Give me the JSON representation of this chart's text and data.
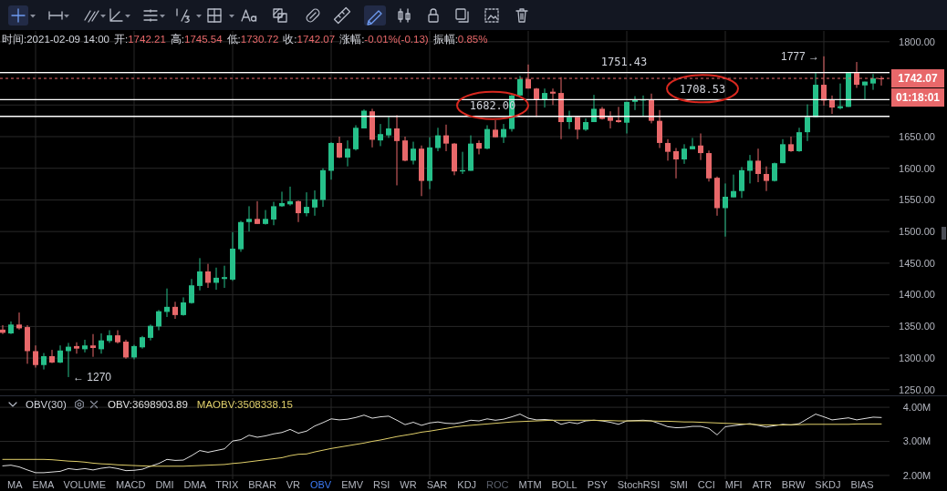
{
  "chart_data": [
    {
      "type": "candlestick",
      "categories": [
        null,
        null,
        null,
        null,
        null,
        null,
        null,
        null,
        null,
        null,
        null,
        null,
        null,
        null,
        null,
        null,
        null,
        null,
        null,
        null,
        null,
        null,
        null,
        null,
        null,
        null,
        null,
        null,
        null,
        null,
        null,
        null,
        null,
        null,
        null,
        null,
        null,
        null,
        null,
        null,
        null,
        null,
        null,
        null,
        null,
        null,
        null,
        null,
        null,
        null,
        null,
        null,
        null,
        null,
        null,
        null,
        null,
        null,
        null,
        null,
        null,
        null,
        null,
        null,
        null,
        null,
        null,
        null,
        null,
        null,
        null,
        null,
        null,
        null,
        null,
        null,
        null,
        null,
        null,
        null,
        null,
        null,
        null,
        null,
        null,
        null,
        null,
        null,
        null,
        null,
        null,
        null,
        null,
        null,
        null,
        null,
        null,
        null,
        null,
        null,
        null,
        null,
        null,
        null,
        null,
        null,
        null,
        null
      ],
      "ohlc": [
        [
          1345,
          1352,
          1338,
          1340
        ],
        [
          1339,
          1358,
          1338,
          1353
        ],
        [
          1353,
          1372,
          1345,
          1347
        ],
        [
          1349,
          1352,
          1291,
          1311
        ],
        [
          1311,
          1320,
          1285,
          1289
        ],
        [
          1289,
          1308,
          1282,
          1303
        ],
        [
          1303,
          1313,
          1292,
          1293
        ],
        [
          1293,
          1320,
          1292,
          1312
        ],
        [
          1311,
          1324,
          1270,
          1318
        ],
        [
          1319,
          1325,
          1307,
          1315
        ],
        [
          1314,
          1329,
          1309,
          1320
        ],
        [
          1320,
          1338,
          1302,
          1316
        ],
        [
          1314,
          1339,
          1307,
          1328
        ],
        [
          1327,
          1344,
          1324,
          1336
        ],
        [
          1336,
          1344,
          1323,
          1325
        ],
        [
          1326,
          1329,
          1299,
          1301
        ],
        [
          1301,
          1321,
          1298,
          1319
        ],
        [
          1317,
          1335,
          1315,
          1333
        ],
        [
          1332,
          1353,
          1328,
          1351
        ],
        [
          1350,
          1376,
          1344,
          1374
        ],
        [
          1373,
          1410,
          1365,
          1381
        ],
        [
          1381,
          1389,
          1362,
          1368
        ],
        [
          1368,
          1396,
          1367,
          1388
        ],
        [
          1387,
          1425,
          1386,
          1415
        ],
        [
          1414,
          1458,
          1407,
          1437
        ],
        [
          1437,
          1449,
          1411,
          1419
        ],
        [
          1419,
          1443,
          1408,
          1427
        ],
        [
          1425,
          1446,
          1411,
          1428
        ],
        [
          1424,
          1499,
          1422,
          1473
        ],
        [
          1472,
          1517,
          1468,
          1515
        ],
        [
          1515,
          1540,
          1500,
          1520
        ],
        [
          1520,
          1548,
          1512,
          1512
        ],
        [
          1512,
          1534,
          1511,
          1520
        ],
        [
          1519,
          1547,
          1510,
          1540
        ],
        [
          1540,
          1563,
          1539,
          1545
        ],
        [
          1543,
          1571,
          1541,
          1548
        ],
        [
          1548,
          1549,
          1515,
          1529
        ],
        [
          1529,
          1562,
          1524,
          1539
        ],
        [
          1538,
          1565,
          1525,
          1551
        ],
        [
          1550,
          1600,
          1539,
          1597
        ],
        [
          1596,
          1641,
          1582,
          1640
        ],
        [
          1640,
          1650,
          1616,
          1617
        ],
        [
          1617,
          1644,
          1603,
          1631
        ],
        [
          1630,
          1668,
          1628,
          1664
        ],
        [
          1663,
          1693,
          1663,
          1691
        ],
        [
          1690,
          1694,
          1633,
          1645
        ],
        [
          1644,
          1670,
          1635,
          1654
        ],
        [
          1652,
          1681,
          1648,
          1663
        ],
        [
          1663,
          1684,
          1573,
          1643
        ],
        [
          1644,
          1650,
          1611,
          1612
        ],
        [
          1612,
          1642,
          1606,
          1631
        ],
        [
          1631,
          1636,
          1556,
          1580
        ],
        [
          1580,
          1649,
          1567,
          1633
        ],
        [
          1632,
          1664,
          1627,
          1652
        ],
        [
          1652,
          1669,
          1627,
          1639
        ],
        [
          1639,
          1640,
          1589,
          1595
        ],
        [
          1595,
          1626,
          1591,
          1597
        ],
        [
          1596,
          1652,
          1596,
          1639
        ],
        [
          1640,
          1644,
          1622,
          1631
        ],
        [
          1631,
          1668,
          1630,
          1662
        ],
        [
          1661,
          1676,
          1649,
          1649
        ],
        [
          1649,
          1670,
          1640,
          1662
        ],
        [
          1662,
          1716,
          1658,
          1715
        ],
        [
          1715,
          1746,
          1715,
          1741
        ],
        [
          1741,
          1764,
          1726,
          1726
        ],
        [
          1726,
          1727,
          1681,
          1709
        ],
        [
          1709,
          1726,
          1696,
          1719
        ],
        [
          1721,
          1726,
          1700,
          1718
        ],
        [
          1719,
          1744,
          1646,
          1673
        ],
        [
          1673,
          1691,
          1662,
          1681
        ],
        [
          1681,
          1681,
          1646,
          1661
        ],
        [
          1661,
          1679,
          1659,
          1673
        ],
        [
          1673,
          1716,
          1673,
          1694
        ],
        [
          1694,
          1697,
          1677,
          1678
        ],
        [
          1681,
          1690,
          1663,
          1675
        ],
        [
          1676,
          1697,
          1672,
          1673
        ],
        [
          1672,
          1705,
          1655,
          1705
        ],
        [
          1705,
          1714,
          1692,
          1709
        ],
        [
          1707,
          1715,
          1682,
          1709
        ],
        [
          1708,
          1718,
          1671,
          1675
        ],
        [
          1675,
          1692,
          1632,
          1640
        ],
        [
          1640,
          1646,
          1612,
          1626
        ],
        [
          1627,
          1632,
          1584,
          1614
        ],
        [
          1614,
          1638,
          1607,
          1631
        ],
        [
          1630,
          1648,
          1630,
          1635
        ],
        [
          1636,
          1655,
          1613,
          1624
        ],
        [
          1624,
          1628,
          1579,
          1584
        ],
        [
          1585,
          1587,
          1525,
          1537
        ],
        [
          1537,
          1576,
          1492,
          1555
        ],
        [
          1554,
          1590,
          1554,
          1564
        ],
        [
          1564,
          1602,
          1553,
          1597
        ],
        [
          1596,
          1621,
          1576,
          1612
        ],
        [
          1612,
          1631,
          1578,
          1591
        ],
        [
          1591,
          1603,
          1564,
          1580
        ],
        [
          1580,
          1609,
          1579,
          1608
        ],
        [
          1608,
          1646,
          1608,
          1638
        ],
        [
          1638,
          1650,
          1626,
          1627
        ],
        [
          1627,
          1664,
          1626,
          1657
        ],
        [
          1657,
          1701,
          1643,
          1681
        ],
        [
          1681,
          1751,
          1681,
          1732
        ],
        [
          1732,
          1777,
          1699,
          1707
        ],
        [
          1708,
          1715,
          1686,
          1696
        ],
        [
          1695,
          1734,
          1693,
          1698
        ],
        [
          1697,
          1752,
          1697,
          1751
        ],
        [
          1751,
          1768,
          1727,
          1732
        ],
        [
          1731,
          1737,
          1708,
          1737
        ],
        [
          1734,
          1749,
          1724,
          1742
        ],
        [
          1742.21,
          1745.54,
          1730.72,
          1742.07
        ]
      ],
      "colors": [
        "#e8686a",
        "#26c08a",
        "#e8686a",
        "#e8686a",
        "#e8686a",
        "#26c08a",
        "#e8686a",
        "#26c08a",
        "#26c08a",
        "#e8686a",
        "#26c08a",
        "#e8686a",
        "#26c08a",
        "#26c08a",
        "#e8686a",
        "#e8686a",
        "#26c08a",
        "#26c08a",
        "#26c08a",
        "#26c08a",
        "#26c08a",
        "#e8686a",
        "#26c08a",
        "#26c08a",
        "#26c08a",
        "#e8686a",
        "#26c08a",
        "#26c08a",
        "#26c08a",
        "#26c08a",
        "#26c08a",
        "#e8686a",
        "#26c08a",
        "#26c08a",
        "#26c08a",
        "#26c08a",
        "#e8686a",
        "#26c08a",
        "#26c08a",
        "#26c08a",
        "#26c08a",
        "#e8686a",
        "#26c08a",
        "#26c08a",
        "#26c08a",
        "#e8686a",
        "#26c08a",
        "#26c08a",
        "#e8686a",
        "#e8686a",
        "#26c08a",
        "#e8686a",
        "#26c08a",
        "#26c08a",
        "#e8686a",
        "#e8686a",
        "#26c08a",
        "#26c08a",
        "#e8686a",
        "#26c08a",
        "#e8686a",
        "#26c08a",
        "#26c08a",
        "#26c08a",
        "#e8686a",
        "#e8686a",
        "#26c08a",
        "#e8686a",
        "#e8686a",
        "#26c08a",
        "#e8686a",
        "#26c08a",
        "#26c08a",
        "#e8686a",
        "#e8686a",
        "#e8686a",
        "#26c08a",
        "#26c08a",
        "#26c08a",
        "#e8686a",
        "#e8686a",
        "#e8686a",
        "#e8686a",
        "#26c08a",
        "#26c08a",
        "#e8686a",
        "#e8686a",
        "#e8686a",
        "#26c08a",
        "#26c08a",
        "#26c08a",
        "#26c08a",
        "#e8686a",
        "#e8686a",
        "#26c08a",
        "#26c08a",
        "#e8686a",
        "#26c08a",
        "#26c08a",
        "#26c08a",
        "#e8686a",
        "#e8686a",
        "#26c08a",
        "#26c08a",
        "#e8686a",
        "#26c08a",
        "#26c08a",
        "#e8686a"
      ],
      "ylim": [
        1244,
        1817
      ],
      "yticks": [
        {
          "value": 1250,
          "label": "1250.00"
        },
        {
          "value": 1300,
          "label": "1300.00"
        },
        {
          "value": 1350,
          "label": "1350.00"
        },
        {
          "value": 1400,
          "label": "1400.00"
        },
        {
          "value": 1450,
          "label": "1450.00"
        },
        {
          "value": 1500,
          "label": "1500.00"
        },
        {
          "value": 1550,
          "label": "1550.00"
        },
        {
          "value": 1600,
          "label": "1600.00"
        },
        {
          "value": 1650,
          "label": "1650.00"
        },
        {
          "value": 1700,
          "label": null
        },
        {
          "value": 1750,
          "label": null
        },
        {
          "value": 1800,
          "label": "1800.00"
        }
      ],
      "grid": true,
      "ref_lines": [
        {
          "axis": "y",
          "value": 1751.43,
          "label": "1751.43",
          "color": "#ffffff"
        },
        {
          "axis": "y",
          "value": 1708.53,
          "label": "1708.53",
          "color": "#ffffff"
        },
        {
          "axis": "y",
          "value": 1682.0,
          "label": "1682.00",
          "color": "#ffffff"
        },
        {
          "axis": "y",
          "value": 1742.07,
          "label": "1742.07",
          "color": "#e8686a",
          "line_style": "dashed"
        }
      ],
      "annotations": [
        "时间:2021-02-09 14:00",
        "开:1742.21",
        "高:1745.54",
        "低:1730.72",
        "收:1742.07",
        "涨幅:-0.01%(-0.13)",
        "振幅:0.85%",
        "01:18:01",
        "1777 →",
        "← 1270"
      ]
    },
    {
      "type": "line",
      "title": "OBV(30)",
      "categories": [
        null,
        null,
        null,
        null,
        null,
        null,
        null,
        null,
        null,
        null,
        null,
        null,
        null,
        null,
        null,
        null,
        null,
        null,
        null,
        null,
        null,
        null,
        null,
        null,
        null,
        null,
        null,
        null,
        null,
        null,
        null,
        null,
        null,
        null,
        null,
        null,
        null,
        null,
        null,
        null,
        null,
        null,
        null,
        null,
        null,
        null,
        null,
        null,
        null,
        null,
        null,
        null,
        null,
        null,
        null,
        null,
        null,
        null,
        null,
        null,
        null,
        null,
        null,
        null,
        null,
        null,
        null,
        null,
        null,
        null,
        null,
        null,
        null,
        null,
        null,
        null,
        null,
        null,
        null,
        null,
        null,
        null,
        null,
        null,
        null,
        null,
        null,
        null,
        null,
        null,
        null,
        null,
        null,
        null,
        null,
        null,
        null,
        null,
        null,
        null,
        null,
        null,
        null,
        null,
        null,
        null,
        null,
        null
      ],
      "series": [
        {
          "name": "OBV:3698903.89",
          "color": "#e0e0e0",
          "values": [
            2280000,
            2300000,
            2250000,
            2160000,
            2080000,
            2080000,
            2100000,
            2120000,
            2200000,
            2170000,
            2200000,
            2160000,
            2210000,
            2240000,
            2200000,
            2140000,
            2150000,
            2180000,
            2270000,
            2350000,
            2470000,
            2440000,
            2450000,
            2580000,
            2730000,
            2680000,
            2730000,
            2780000,
            3010000,
            3050000,
            3180000,
            3120000,
            3160000,
            3220000,
            3260000,
            3350000,
            3240000,
            3300000,
            3450000,
            3550000,
            3660000,
            3630000,
            3650000,
            3700000,
            3770000,
            3680000,
            3720000,
            3740000,
            3620000,
            3490000,
            3560000,
            3470000,
            3540000,
            3570000,
            3530000,
            3520000,
            3560000,
            3620000,
            3600000,
            3660000,
            3620000,
            3650000,
            3720000,
            3800000,
            3680000,
            3630000,
            3640000,
            3620000,
            3500000,
            3560000,
            3520000,
            3600000,
            3620000,
            3600000,
            3560000,
            3500000,
            3600000,
            3610000,
            3620000,
            3600000,
            3520000,
            3430000,
            3400000,
            3410000,
            3440000,
            3440000,
            3380000,
            3190000,
            3430000,
            3460000,
            3490000,
            3520000,
            3470000,
            3420000,
            3460000,
            3500000,
            3480000,
            3520000,
            3660000,
            3800000,
            3720000,
            3630000,
            3660000,
            3690000,
            3630000,
            3670000,
            3710000,
            3700000
          ]
        },
        {
          "name": "MAOBV:3508338.15",
          "color": "#e0cf6a",
          "values": [
            2470000,
            2470000,
            2470000,
            2470000,
            2470000,
            2470000,
            2460000,
            2440000,
            2420000,
            2410000,
            2390000,
            2360000,
            2340000,
            2330000,
            2310000,
            2300000,
            2290000,
            2280000,
            2270000,
            2270000,
            2270000,
            2270000,
            2270000,
            2280000,
            2290000,
            2300000,
            2310000,
            2320000,
            2350000,
            2370000,
            2400000,
            2430000,
            2460000,
            2490000,
            2520000,
            2580000,
            2620000,
            2630000,
            2690000,
            2740000,
            2790000,
            2830000,
            2870000,
            2910000,
            2950000,
            3000000,
            3040000,
            3090000,
            3140000,
            3180000,
            3220000,
            3270000,
            3300000,
            3340000,
            3380000,
            3420000,
            3450000,
            3470000,
            3490000,
            3510000,
            3530000,
            3550000,
            3570000,
            3580000,
            3590000,
            3600000,
            3610000,
            3620000,
            3620000,
            3620000,
            3620000,
            3620000,
            3620000,
            3610000,
            3610000,
            3600000,
            3600000,
            3600000,
            3600000,
            3600000,
            3590000,
            3590000,
            3580000,
            3570000,
            3570000,
            3560000,
            3550000,
            3540000,
            3530000,
            3520000,
            3510000,
            3500000,
            3490000,
            3480000,
            3480000,
            3480000,
            3490000,
            3490000,
            3500000,
            3500000,
            3500000,
            3500000,
            3500000,
            3500000,
            3510000,
            3510000,
            3510000,
            3510000
          ]
        }
      ],
      "ylim": [
        1890000,
        4270000
      ],
      "yticks": [
        {
          "value": 2000000,
          "label": "2.00M"
        },
        {
          "value": 3000000,
          "label": "3.00M"
        },
        {
          "value": 4000000,
          "label": "4.00M"
        }
      ],
      "grid": true,
      "legend": "top left",
      "annotations": [
        "MA",
        "EMA",
        "VOLUME",
        "MACD",
        "DMI",
        "DMA",
        "TRIX",
        "BRAR",
        "VR",
        "OBV",
        "EMV",
        "RSI",
        "WR",
        "SAR",
        "KDJ",
        "ROC",
        "MTM",
        "BOLL",
        "PSY",
        "StochRSI",
        "SMI",
        "CCI",
        "MFI",
        "ATR",
        "BRW",
        "SKDJ",
        "BIAS"
      ]
    }
  ]
}
